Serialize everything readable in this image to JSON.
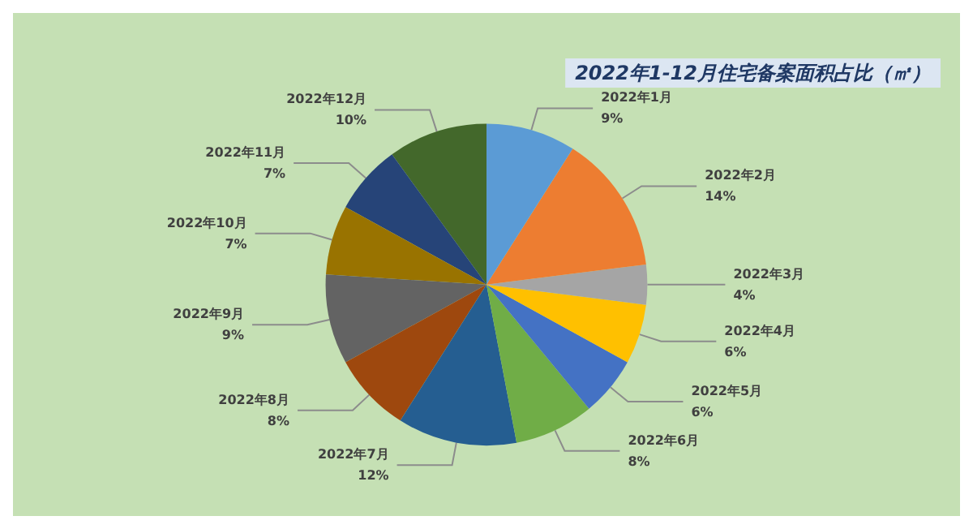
{
  "chart_data": {
    "type": "pie",
    "title": "2022年1-12月住宅备案面积占比（㎡）",
    "categories": [
      "2022年1月",
      "2022年2月",
      "2022年3月",
      "2022年4月",
      "2022年5月",
      "2022年6月",
      "2022年7月",
      "2022年8月",
      "2022年9月",
      "2022年10月",
      "2022年11月",
      "2022年12月"
    ],
    "values": [
      9,
      14,
      4,
      6,
      6,
      8,
      12,
      8,
      9,
      7,
      7,
      10
    ],
    "colors": [
      "#5b9bd5",
      "#ed7d31",
      "#a5a5a5",
      "#ffc000",
      "#4472c4",
      "#70ad47",
      "#255e91",
      "#9e480e",
      "#636363",
      "#997300",
      "#264478",
      "#43682b"
    ],
    "value_labels": [
      "9%",
      "14%",
      "4%",
      "6%",
      "6%",
      "8%",
      "12%",
      "8%",
      "9%",
      "7%",
      "7%",
      "10%"
    ],
    "legend": false
  }
}
